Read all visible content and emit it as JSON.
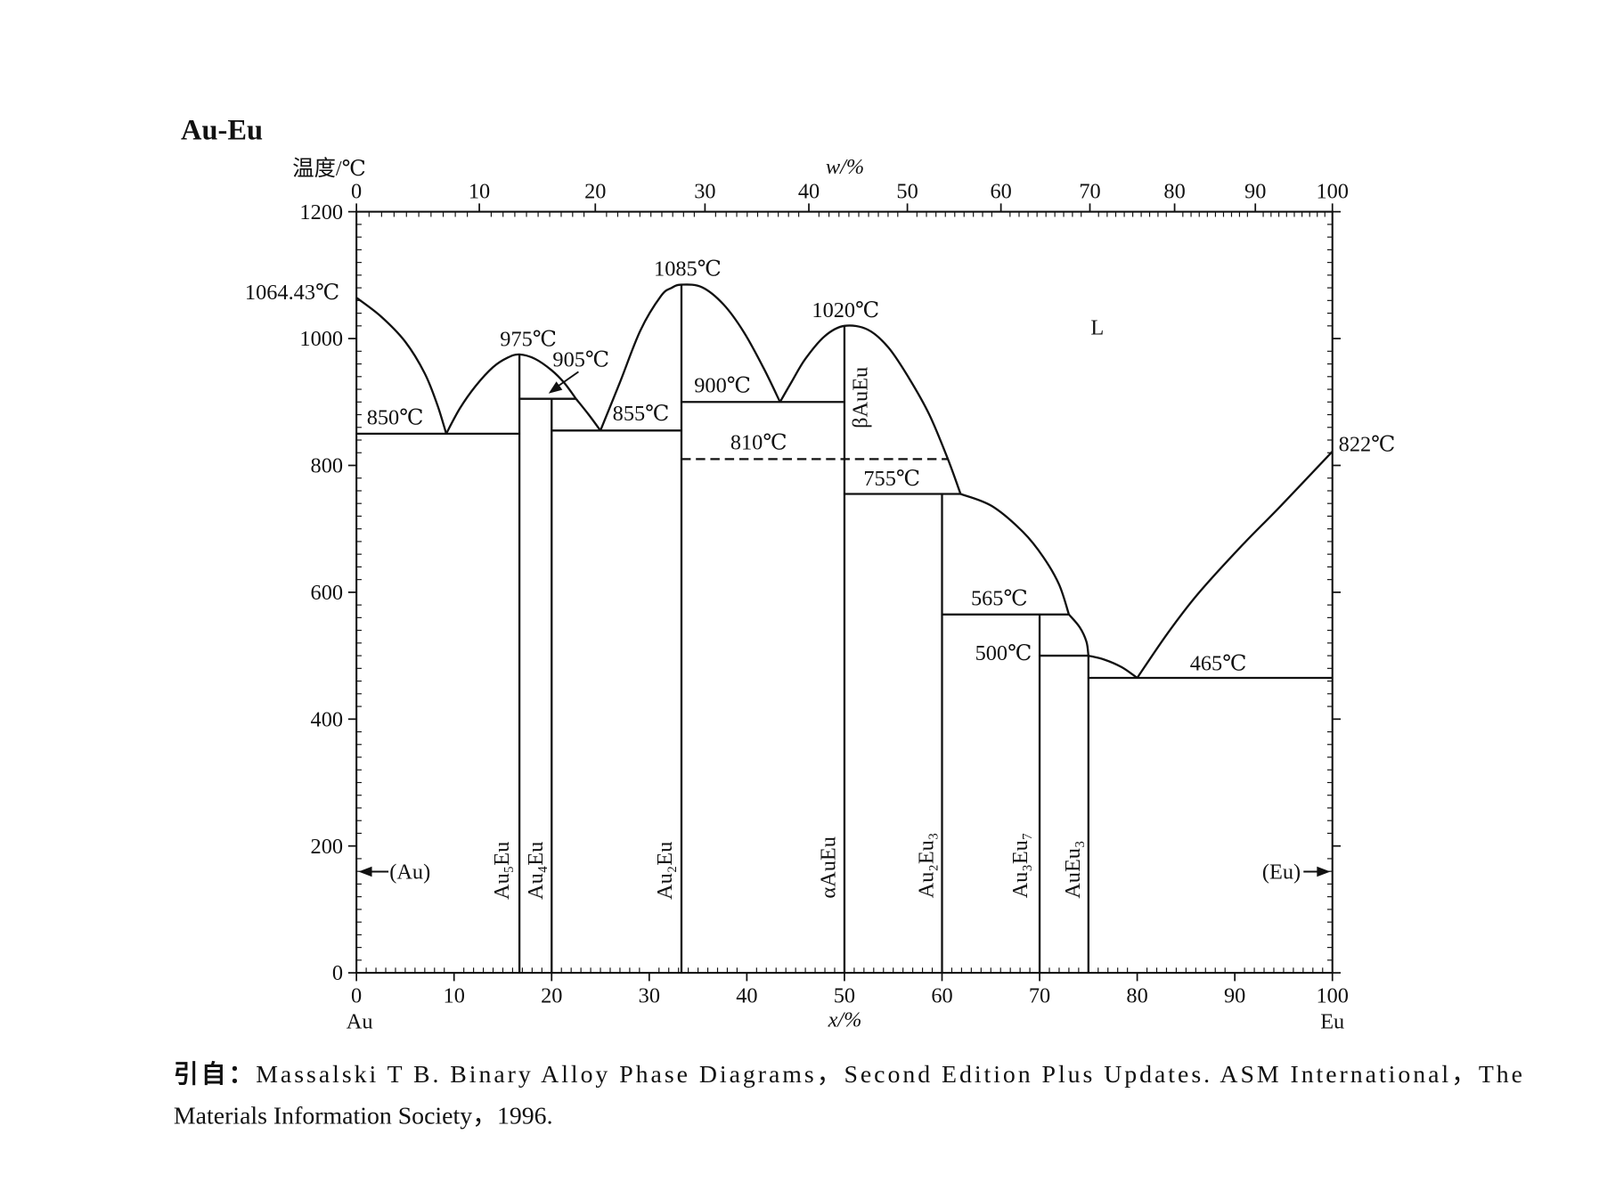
{
  "chart_data": {
    "type": "line",
    "title": "Au-Eu",
    "ylabel": "温度/℃",
    "xlabel": "x/%",
    "x2label": "w/%",
    "xlim": [
      0,
      100
    ],
    "ylim": [
      0,
      1200
    ],
    "xticks": [
      0,
      10,
      20,
      30,
      40,
      50,
      60,
      70,
      80,
      90,
      100
    ],
    "x2ticks": [
      0,
      10,
      20,
      30,
      40,
      50,
      60,
      70,
      80,
      90,
      100
    ],
    "yticks": [
      0,
      200,
      400,
      600,
      800,
      1000,
      1200
    ],
    "x_end_labels": [
      "Au",
      "Eu"
    ],
    "grid": false,
    "legend": "none",
    "liquidus": [
      [
        [
          0,
          1064.43
        ],
        [
          2.5,
          1035
        ],
        [
          5,
          995
        ],
        [
          7,
          945
        ],
        [
          8.3,
          895
        ],
        [
          9.2,
          850
        ]
      ],
      [
        [
          9.2,
          850
        ],
        [
          10.6,
          890
        ],
        [
          12.2,
          925
        ],
        [
          14,
          955
        ],
        [
          15.5,
          970
        ],
        [
          16.7,
          975
        ],
        [
          18.3,
          968
        ],
        [
          20,
          950
        ],
        [
          21.3,
          930
        ],
        [
          22.5,
          905
        ]
      ],
      [
        [
          22.5,
          905
        ],
        [
          23.8,
          880
        ],
        [
          25,
          855
        ]
      ],
      [
        [
          25,
          855
        ],
        [
          27,
          931
        ],
        [
          29.1,
          1013
        ],
        [
          31.2,
          1067
        ],
        [
          32.3,
          1080
        ],
        [
          33.3,
          1085
        ],
        [
          35.4,
          1081
        ],
        [
          37.6,
          1054
        ],
        [
          39.7,
          1010
        ],
        [
          41.8,
          951
        ],
        [
          43.4,
          900
        ]
      ],
      [
        [
          43.4,
          900
        ],
        [
          44.6,
          932
        ],
        [
          46,
          968
        ],
        [
          48,
          1004
        ],
        [
          50,
          1020
        ],
        [
          52.4,
          1014
        ],
        [
          54.5,
          986
        ],
        [
          56.6,
          938
        ],
        [
          58.7,
          880
        ],
        [
          60.6,
          810
        ],
        [
          61.9,
          755
        ]
      ],
      [
        [
          61.9,
          755
        ],
        [
          65.1,
          736
        ],
        [
          68.3,
          695
        ],
        [
          70.4,
          655
        ],
        [
          72,
          612
        ],
        [
          73,
          565
        ]
      ],
      [
        [
          73,
          565
        ],
        [
          74.1,
          545
        ],
        [
          74.8,
          522
        ],
        [
          75,
          500
        ]
      ],
      [
        [
          75,
          500
        ],
        [
          76.6,
          494
        ],
        [
          78.4,
          482
        ],
        [
          80,
          465
        ]
      ],
      [
        [
          80,
          465
        ],
        [
          83.1,
          535
        ],
        [
          86.2,
          597
        ],
        [
          90.5,
          670
        ],
        [
          94.7,
          736
        ],
        [
          100,
          822
        ]
      ]
    ],
    "invariants": [
      {
        "t": 850,
        "x": [
          0,
          16.7
        ],
        "dashed": false
      },
      {
        "t": 905,
        "x": [
          16.7,
          22.5
        ],
        "dashed": false
      },
      {
        "t": 855,
        "x": [
          20,
          33.3
        ],
        "dashed": false
      },
      {
        "t": 900,
        "x": [
          33.3,
          50
        ],
        "dashed": false
      },
      {
        "t": 810,
        "x": [
          33.3,
          60.6
        ],
        "dashed": true
      },
      {
        "t": 755,
        "x": [
          50,
          61.9
        ],
        "dashed": false
      },
      {
        "t": 565,
        "x": [
          60,
          73
        ],
        "dashed": false
      },
      {
        "t": 500,
        "x": [
          70,
          75
        ],
        "dashed": false
      },
      {
        "t": 465,
        "x": [
          75,
          100
        ],
        "dashed": false
      }
    ],
    "compounds": [
      {
        "name": "Au₅Eu",
        "x": 16.7,
        "t_max": 975
      },
      {
        "name": "Au₄Eu",
        "x": 20,
        "t_max": 905
      },
      {
        "name": "Au₂Eu",
        "x": 33.3,
        "t_max": 1085
      },
      {
        "name": "αAuEu",
        "x": 50,
        "t_max": 1020
      },
      {
        "name": "Au₂Eu₃",
        "x": 60,
        "t_max": 755
      },
      {
        "name": "Au₃Eu₇",
        "x": 70,
        "t_max": 565
      },
      {
        "name": "AuEu₃",
        "x": 75,
        "t_max": 500
      }
    ],
    "beta_phase_label": "βAuEu",
    "annotations": [
      {
        "text": "1064.43℃"
      },
      {
        "text": "975℃"
      },
      {
        "text": "905℃"
      },
      {
        "text": "850℃"
      },
      {
        "text": "855℃"
      },
      {
        "text": "1085℃"
      },
      {
        "text": "900℃"
      },
      {
        "text": "810℃"
      },
      {
        "text": "1020℃"
      },
      {
        "text": "755℃"
      },
      {
        "text": "822℃"
      },
      {
        "text": "565℃"
      },
      {
        "text": "500℃"
      },
      {
        "text": "465℃"
      }
    ],
    "phase_labels": {
      "liquid": "L",
      "au_solid": "(Au)",
      "eu_solid": "(Eu)"
    }
  },
  "caption": {
    "prefix": "引自：",
    "line1": "Massalski T B. Binary Alloy Phase Diagrams，Second Edition Plus Updates. ASM International，The",
    "line2": "Materials Information Society，1996."
  }
}
